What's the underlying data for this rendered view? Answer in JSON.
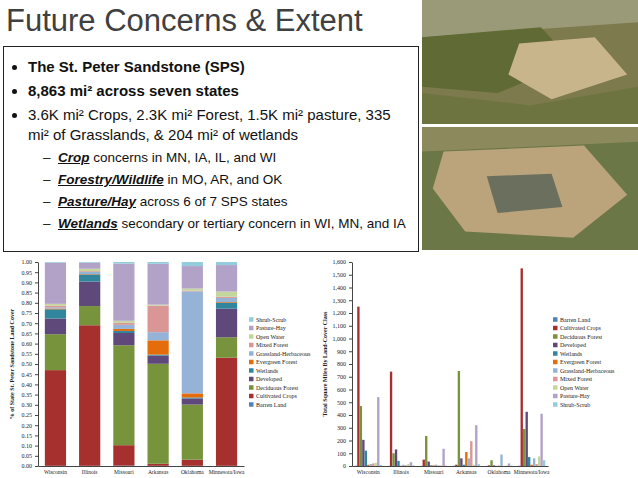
{
  "slide": {
    "title": "Future Concerns & Extent",
    "bullets": [
      "The St. Peter Sandstone (SPS)",
      "8,863 mi² across seven states",
      "3.6K mi² Crops, 2.3K mi² Forest, 1.5K mi² pasture, 335 mi² of Grasslands, & 204 mi² of wetlands"
    ],
    "sub_bullets": [
      {
        "emphasis": "Crop",
        "text": " concerns in MN, IA, IL, and WI"
      },
      {
        "emphasis": "Forestry/Wildlife",
        "text": " in MO, AR, and OK"
      },
      {
        "emphasis": "Pasture/Hay",
        "text": " across 6 of 7 SPS states"
      },
      {
        "emphasis": "Wetlands",
        "text": " secondary or tertiary concern in WI, MN, and IA"
      }
    ]
  },
  "chart_data": [
    {
      "type": "bar",
      "stacked": true,
      "legend": "right",
      "y_label": "% of State St. Peter Sandstone Land Cover",
      "categories": [
        "Wisconsin",
        "Illinois",
        "Missouri",
        "Arkansas",
        "Oklahoma",
        "Minnesota/Iowa"
      ],
      "ylim": [
        0,
        1
      ],
      "yticks": [
        {
          "value": 0,
          "label": "0.00"
        },
        {
          "value": 0.05,
          "label": "0.05"
        },
        {
          "value": 0.1,
          "label": "0.10"
        },
        {
          "value": 0.15,
          "label": "0.15"
        },
        {
          "value": 0.2,
          "label": "0.20"
        },
        {
          "value": 0.25,
          "label": "0.25"
        },
        {
          "value": 0.3,
          "label": "0.30"
        },
        {
          "value": 0.35,
          "label": "0.35"
        },
        {
          "value": 0.4,
          "label": "0.40"
        },
        {
          "value": 0.45,
          "label": "0.45"
        },
        {
          "value": 0.5,
          "label": "0.50"
        },
        {
          "value": 0.55,
          "label": "0.55"
        },
        {
          "value": 0.6,
          "label": "0.60"
        },
        {
          "value": 0.65,
          "label": "0.65"
        },
        {
          "value": 0.7,
          "label": "0.70"
        },
        {
          "value": 0.75,
          "label": "0.75"
        },
        {
          "value": 0.8,
          "label": "0.80"
        },
        {
          "value": 0.85,
          "label": "0.85"
        },
        {
          "value": 0.9,
          "label": "0.90"
        },
        {
          "value": 0.95,
          "label": "0.95"
        },
        {
          "value": 1,
          "label": "1.00"
        }
      ],
      "series": [
        {
          "name": "Barren Land",
          "color": "#4f81bd",
          "values": [
            0.001,
            0.001,
            0.002,
            0.001,
            0.001,
            0.001
          ]
        },
        {
          "name": "Cultivated Crops",
          "color": "#a5302e",
          "values": [
            0.469,
            0.689,
            0.1,
            0.01,
            0.03,
            0.53
          ]
        },
        {
          "name": "Deciduous Forest",
          "color": "#77933c",
          "values": [
            0.176,
            0.094,
            0.49,
            0.49,
            0.27,
            0.1
          ]
        },
        {
          "name": "Developed",
          "color": "#5f497a",
          "values": [
            0.077,
            0.12,
            0.06,
            0.04,
            0.03,
            0.14
          ]
        },
        {
          "name": "Wetlands",
          "color": "#31859c",
          "values": [
            0.045,
            0.035,
            0.01,
            0.005,
            0.005,
            0.03
          ]
        },
        {
          "name": "Evergreen Forest",
          "color": "#e46c0a",
          "values": [
            0.004,
            0.002,
            0.01,
            0.07,
            0.02,
            0.003
          ]
        },
        {
          "name": "Grassland-Herbaceous",
          "color": "#95b3d7",
          "values": [
            0.006,
            0.01,
            0.02,
            0.04,
            0.5,
            0.02
          ]
        },
        {
          "name": "Mixed Forest",
          "color": "#d99694",
          "values": [
            0.008,
            0.004,
            0.01,
            0.13,
            0.004,
            0.006
          ]
        },
        {
          "name": "Open Water",
          "color": "#c3d69b",
          "values": [
            0.009,
            0.012,
            0.01,
            0.005,
            0.01,
            0.025
          ]
        },
        {
          "name": "Pasture-Hay",
          "color": "#b3a2c7",
          "values": [
            0.202,
            0.03,
            0.28,
            0.2,
            0.11,
            0.13
          ]
        },
        {
          "name": "Shrub-Scrub",
          "color": "#93cddd",
          "values": [
            0.003,
            0.003,
            0.008,
            0.009,
            0.02,
            0.015
          ]
        }
      ]
    },
    {
      "type": "bar",
      "legend": "right",
      "y_label": "Total Square Miles By Land-Cover Class",
      "categories": [
        "Wisconsin",
        "Illinois",
        "Missouri",
        "Arkansas",
        "Oklahoma",
        "Minnesota/Iowa"
      ],
      "ylim": [
        0,
        1600
      ],
      "yticks": [
        0,
        100,
        200,
        300,
        400,
        500,
        600,
        700,
        800,
        900,
        {
          "value": 1000,
          "label": "1,000"
        },
        {
          "value": 1100,
          "label": "1,100"
        },
        {
          "value": 1200,
          "label": "1,200"
        },
        {
          "value": 1300,
          "label": "1,300"
        },
        {
          "value": 1400,
          "label": "1,400"
        },
        {
          "value": 1500,
          "label": "1,500"
        },
        {
          "value": 1600,
          "label": "1,600"
        }
      ],
      "series": [
        {
          "name": "Barren Land",
          "color": "#4f81bd",
          "values": [
            2,
            1,
            1,
            2,
            1,
            2
          ]
        },
        {
          "name": "Cultivated Crops",
          "color": "#a5302e",
          "values": [
            1250,
            740,
            50,
            10,
            5,
            1550
          ]
        },
        {
          "name": "Deciduous Forest",
          "color": "#77933c",
          "values": [
            470,
            100,
            235,
            745,
            45,
            290
          ]
        },
        {
          "name": "Developed",
          "color": "#5f497a",
          "values": [
            205,
            130,
            35,
            60,
            5,
            425
          ]
        },
        {
          "name": "Wetlands",
          "color": "#31859c",
          "values": [
            120,
            40,
            5,
            10,
            1,
            70
          ]
        },
        {
          "name": "Evergreen Forest",
          "color": "#e46c0a",
          "values": [
            10,
            2,
            5,
            110,
            3,
            10
          ]
        },
        {
          "name": "Grassland-Herbaceous",
          "color": "#95b3d7",
          "values": [
            15,
            10,
            10,
            60,
            90,
            60
          ]
        },
        {
          "name": "Mixed Forest",
          "color": "#d99694",
          "values": [
            20,
            5,
            5,
            195,
            1,
            15
          ]
        },
        {
          "name": "Open Water",
          "color": "#c3d69b",
          "values": [
            25,
            15,
            5,
            10,
            3,
            75
          ]
        },
        {
          "name": "Pasture-Hay",
          "color": "#b3a2c7",
          "values": [
            540,
            30,
            135,
            320,
            20,
            410
          ]
        },
        {
          "name": "Shrub-Scrub",
          "color": "#93cddd",
          "values": [
            8,
            5,
            3,
            15,
            3,
            45
          ]
        }
      ]
    }
  ]
}
